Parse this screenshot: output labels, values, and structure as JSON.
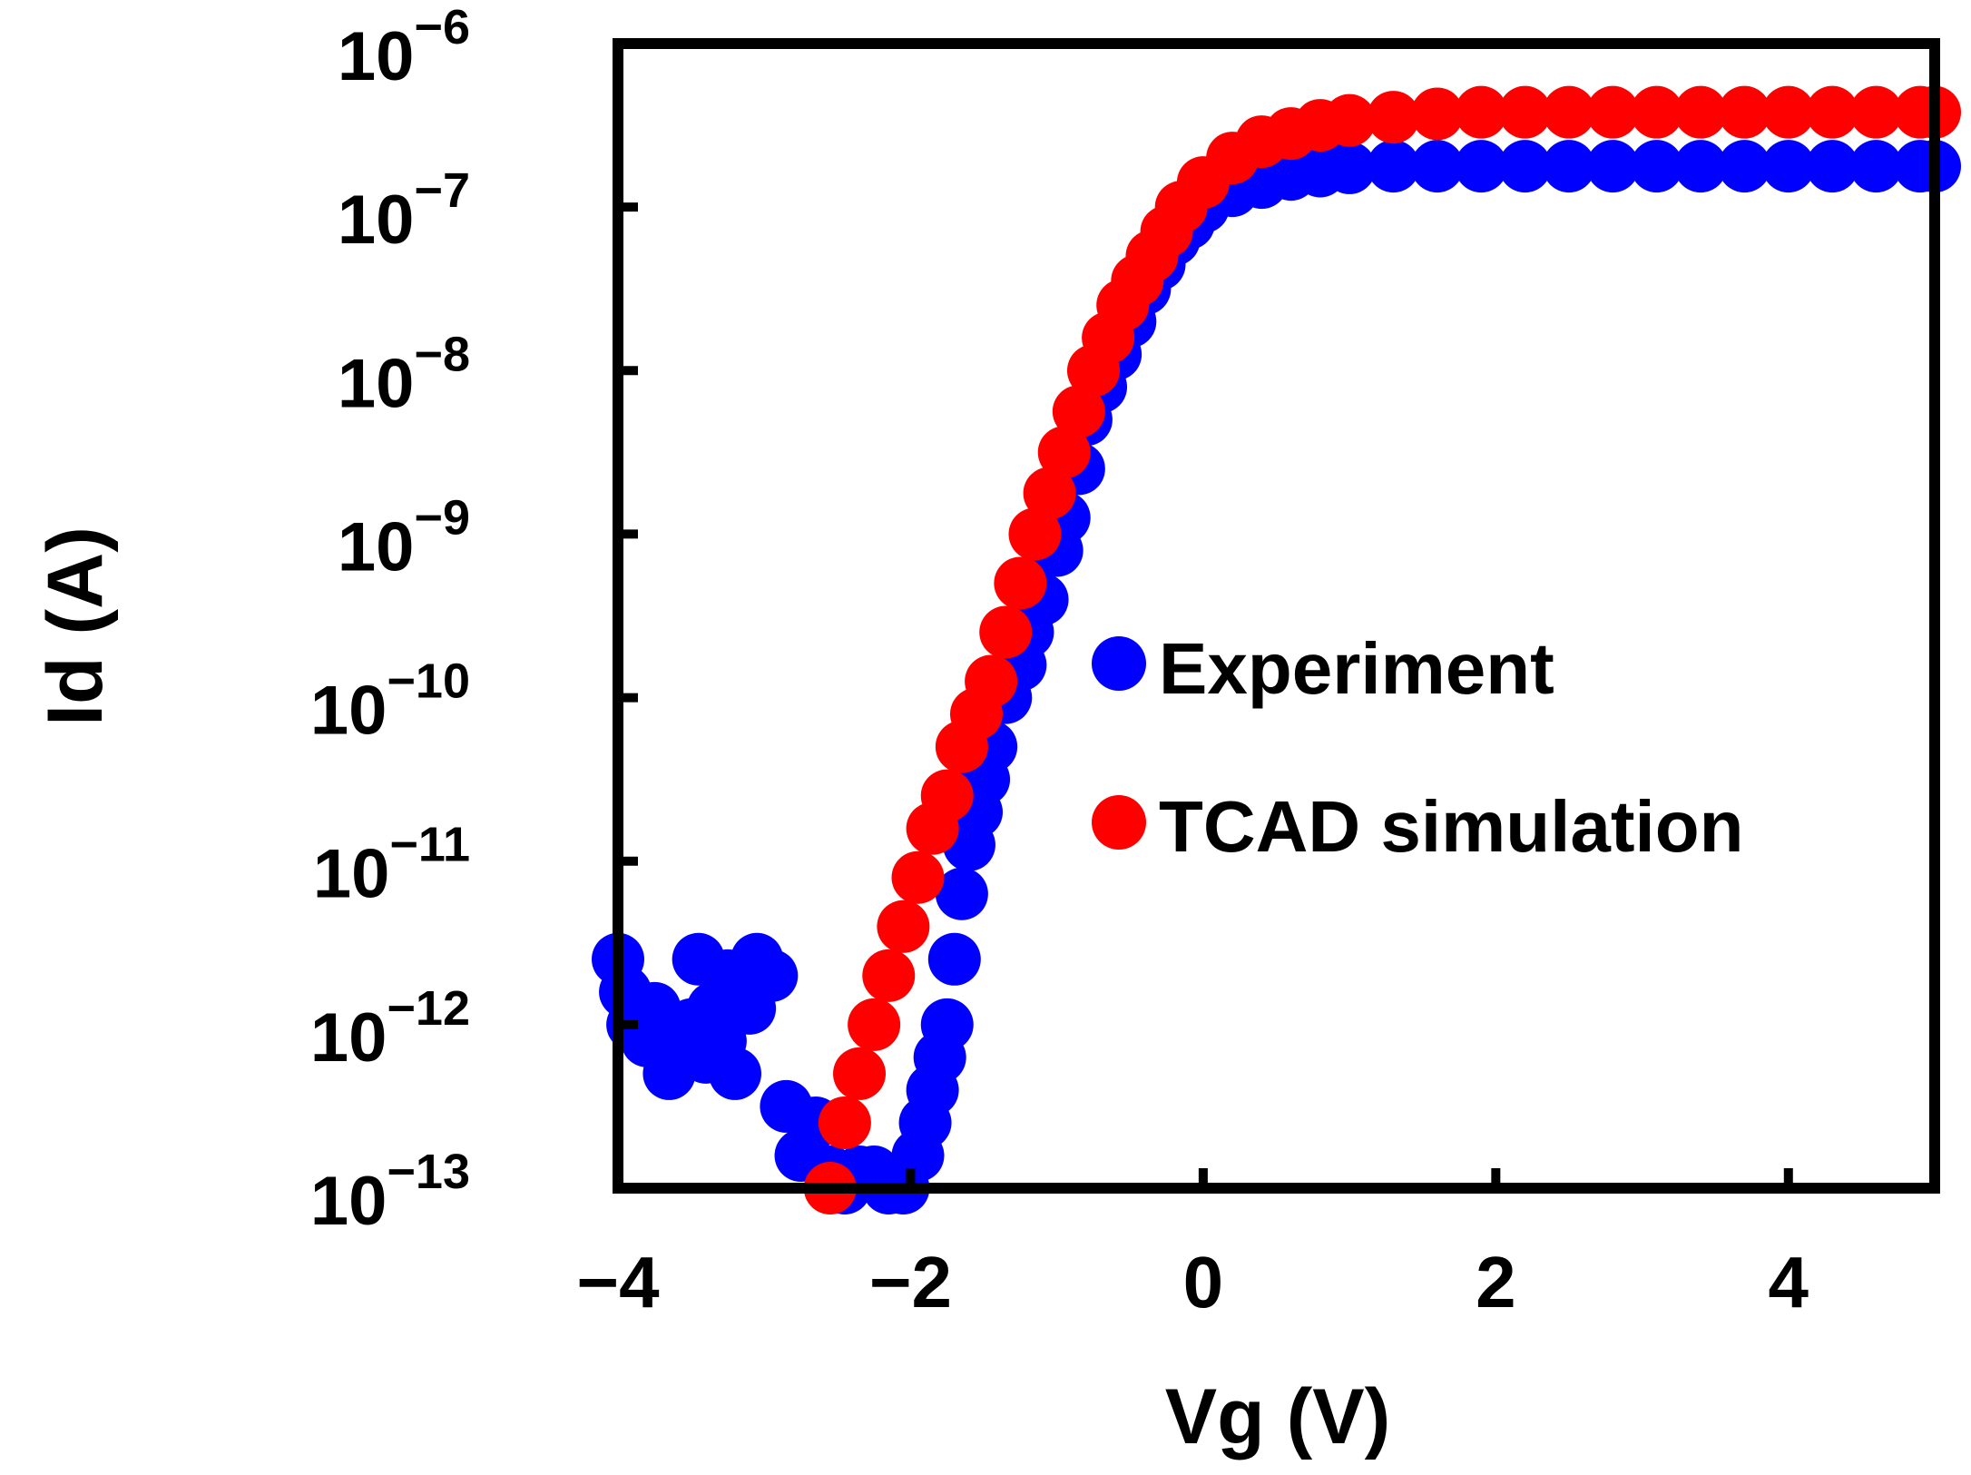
{
  "chart_data": {
    "type": "scatter",
    "title": "",
    "xlabel": "Vg (V)",
    "ylabel": "Id (A)",
    "yscale": "log",
    "xlim": [
      -4,
      5
    ],
    "ylim_exponent": [
      -13,
      -6
    ],
    "x_ticks": [
      -4,
      -2,
      0,
      2,
      4
    ],
    "x_tick_labels": [
      "−4",
      "−2",
      "0",
      "2",
      "4"
    ],
    "y_ticks": [
      {
        "base": "10",
        "exp": "−6",
        "value": -6
      },
      {
        "base": "10",
        "exp": "−7",
        "value": -7
      },
      {
        "base": "10",
        "exp": "−8",
        "value": -8
      },
      {
        "base": "10",
        "exp": "−9",
        "value": -9
      },
      {
        "base": "10",
        "exp": "−10",
        "value": -10
      },
      {
        "base": "10",
        "exp": "−11",
        "value": -11
      },
      {
        "base": "10",
        "exp": "−12",
        "value": -12
      },
      {
        "base": "10",
        "exp": "−13",
        "value": -13
      }
    ],
    "legend_position": "center-right",
    "series": [
      {
        "name": "Experiment",
        "color": "#0000ff",
        "points": [
          [
            -4.0,
            -11.6
          ],
          [
            -3.95,
            -11.8
          ],
          [
            -3.9,
            -12.0
          ],
          [
            -3.8,
            -12.1
          ],
          [
            -3.75,
            -11.9
          ],
          [
            -3.65,
            -12.3
          ],
          [
            -3.6,
            -12.2
          ],
          [
            -3.5,
            -12.0
          ],
          [
            -3.45,
            -11.6
          ],
          [
            -3.4,
            -12.2
          ],
          [
            -3.35,
            -11.9
          ],
          [
            -3.3,
            -12.1
          ],
          [
            -3.25,
            -11.7
          ],
          [
            -3.2,
            -12.3
          ],
          [
            -3.1,
            -11.9
          ],
          [
            -3.05,
            -11.6
          ],
          [
            -2.95,
            -11.7
          ],
          [
            -2.85,
            -12.5
          ],
          [
            -2.75,
            -12.8
          ],
          [
            -2.65,
            -12.6
          ],
          [
            -2.55,
            -12.9
          ],
          [
            -2.45,
            -13.0
          ],
          [
            -2.35,
            -12.9
          ],
          [
            -2.25,
            -12.9
          ],
          [
            -2.15,
            -13.0
          ],
          [
            -2.05,
            -13.0
          ],
          [
            -1.95,
            -12.8
          ],
          [
            -1.9,
            -12.6
          ],
          [
            -1.85,
            -12.4
          ],
          [
            -1.8,
            -12.2
          ],
          [
            -1.75,
            -12.0
          ],
          [
            -1.7,
            -11.6
          ],
          [
            -1.65,
            -11.2
          ],
          [
            -1.6,
            -10.9
          ],
          [
            -1.55,
            -10.7
          ],
          [
            -1.5,
            -10.5
          ],
          [
            -1.45,
            -10.3
          ],
          [
            -1.35,
            -10.0
          ],
          [
            -1.25,
            -9.8
          ],
          [
            -1.2,
            -9.6
          ],
          [
            -1.1,
            -9.4
          ],
          [
            -1.0,
            -9.1
          ],
          [
            -0.95,
            -8.9
          ],
          [
            -0.85,
            -8.6
          ],
          [
            -0.8,
            -8.3
          ],
          [
            -0.7,
            -8.1
          ],
          [
            -0.6,
            -7.9
          ],
          [
            -0.5,
            -7.7
          ],
          [
            -0.4,
            -7.5
          ],
          [
            -0.3,
            -7.35
          ],
          [
            -0.2,
            -7.2
          ],
          [
            -0.1,
            -7.1
          ],
          [
            0.0,
            -7.0
          ],
          [
            0.2,
            -6.9
          ],
          [
            0.4,
            -6.85
          ],
          [
            0.6,
            -6.8
          ],
          [
            0.8,
            -6.78
          ],
          [
            1.0,
            -6.76
          ],
          [
            1.3,
            -6.75
          ],
          [
            1.6,
            -6.75
          ],
          [
            1.9,
            -6.75
          ],
          [
            2.2,
            -6.75
          ],
          [
            2.5,
            -6.75
          ],
          [
            2.8,
            -6.75
          ],
          [
            3.1,
            -6.75
          ],
          [
            3.4,
            -6.75
          ],
          [
            3.7,
            -6.75
          ],
          [
            4.0,
            -6.75
          ],
          [
            4.3,
            -6.75
          ],
          [
            4.6,
            -6.75
          ],
          [
            4.9,
            -6.75
          ],
          [
            5.0,
            -6.75
          ]
        ]
      },
      {
        "name": "TCAD simulation",
        "color": "#ff0000",
        "points": [
          [
            -2.55,
            -13.0
          ],
          [
            -2.45,
            -12.6
          ],
          [
            -2.35,
            -12.3
          ],
          [
            -2.25,
            -12.0
          ],
          [
            -2.15,
            -11.7
          ],
          [
            -2.05,
            -11.4
          ],
          [
            -1.95,
            -11.1
          ],
          [
            -1.85,
            -10.8
          ],
          [
            -1.75,
            -10.6
          ],
          [
            -1.65,
            -10.3
          ],
          [
            -1.55,
            -10.1
          ],
          [
            -1.45,
            -9.9
          ],
          [
            -1.35,
            -9.6
          ],
          [
            -1.25,
            -9.3
          ],
          [
            -1.15,
            -9.0
          ],
          [
            -1.05,
            -8.75
          ],
          [
            -0.95,
            -8.5
          ],
          [
            -0.85,
            -8.25
          ],
          [
            -0.75,
            -8.0
          ],
          [
            -0.65,
            -7.8
          ],
          [
            -0.55,
            -7.6
          ],
          [
            -0.45,
            -7.45
          ],
          [
            -0.35,
            -7.3
          ],
          [
            -0.25,
            -7.15
          ],
          [
            -0.15,
            -7.0
          ],
          [
            0.0,
            -6.85
          ],
          [
            0.2,
            -6.7
          ],
          [
            0.4,
            -6.6
          ],
          [
            0.6,
            -6.55
          ],
          [
            0.8,
            -6.5
          ],
          [
            1.0,
            -6.47
          ],
          [
            1.3,
            -6.45
          ],
          [
            1.6,
            -6.43
          ],
          [
            1.9,
            -6.42
          ],
          [
            2.2,
            -6.42
          ],
          [
            2.5,
            -6.42
          ],
          [
            2.8,
            -6.42
          ],
          [
            3.1,
            -6.42
          ],
          [
            3.4,
            -6.42
          ],
          [
            3.7,
            -6.42
          ],
          [
            4.0,
            -6.42
          ],
          [
            4.3,
            -6.42
          ],
          [
            4.6,
            -6.42
          ],
          [
            4.9,
            -6.42
          ],
          [
            5.0,
            -6.42
          ]
        ]
      }
    ]
  }
}
